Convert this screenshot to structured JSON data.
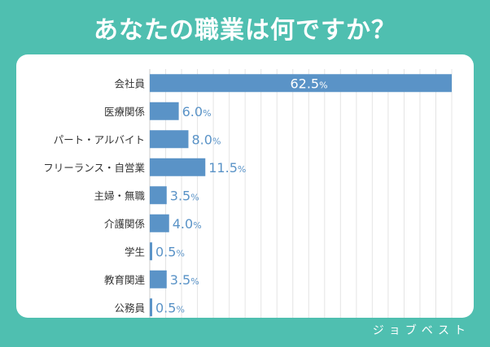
{
  "title": "あなたの職業は何ですか？",
  "watermark": "ジョブベスト",
  "colors": {
    "background": "#4fbfb0",
    "card": "#ffffff",
    "bar": "#5a93c7",
    "value_text": "#5a93c7",
    "inside_value_text": "#ffffff",
    "category_text": "#333333",
    "grid": "#e4e4e4"
  },
  "chart_data": {
    "type": "bar",
    "orientation": "horizontal",
    "title": "あなたの職業は何ですか？",
    "categories": [
      "会社員",
      "医療関係",
      "パート・アルバイト",
      "フリーランス・自営業",
      "主婦・無職",
      "介護関係",
      "学生",
      "教育関連",
      "公務員"
    ],
    "values": [
      62.5,
      6.0,
      8.0,
      11.5,
      3.5,
      4.0,
      0.5,
      3.5,
      0.5
    ],
    "labels": [
      "62.5",
      "6.0",
      "8.0",
      "11.5",
      "3.5",
      "4.0",
      "0.5",
      "3.5",
      "0.5"
    ],
    "unit": "%",
    "xlim": [
      0,
      62.5
    ],
    "grid": true,
    "legend": "none"
  }
}
